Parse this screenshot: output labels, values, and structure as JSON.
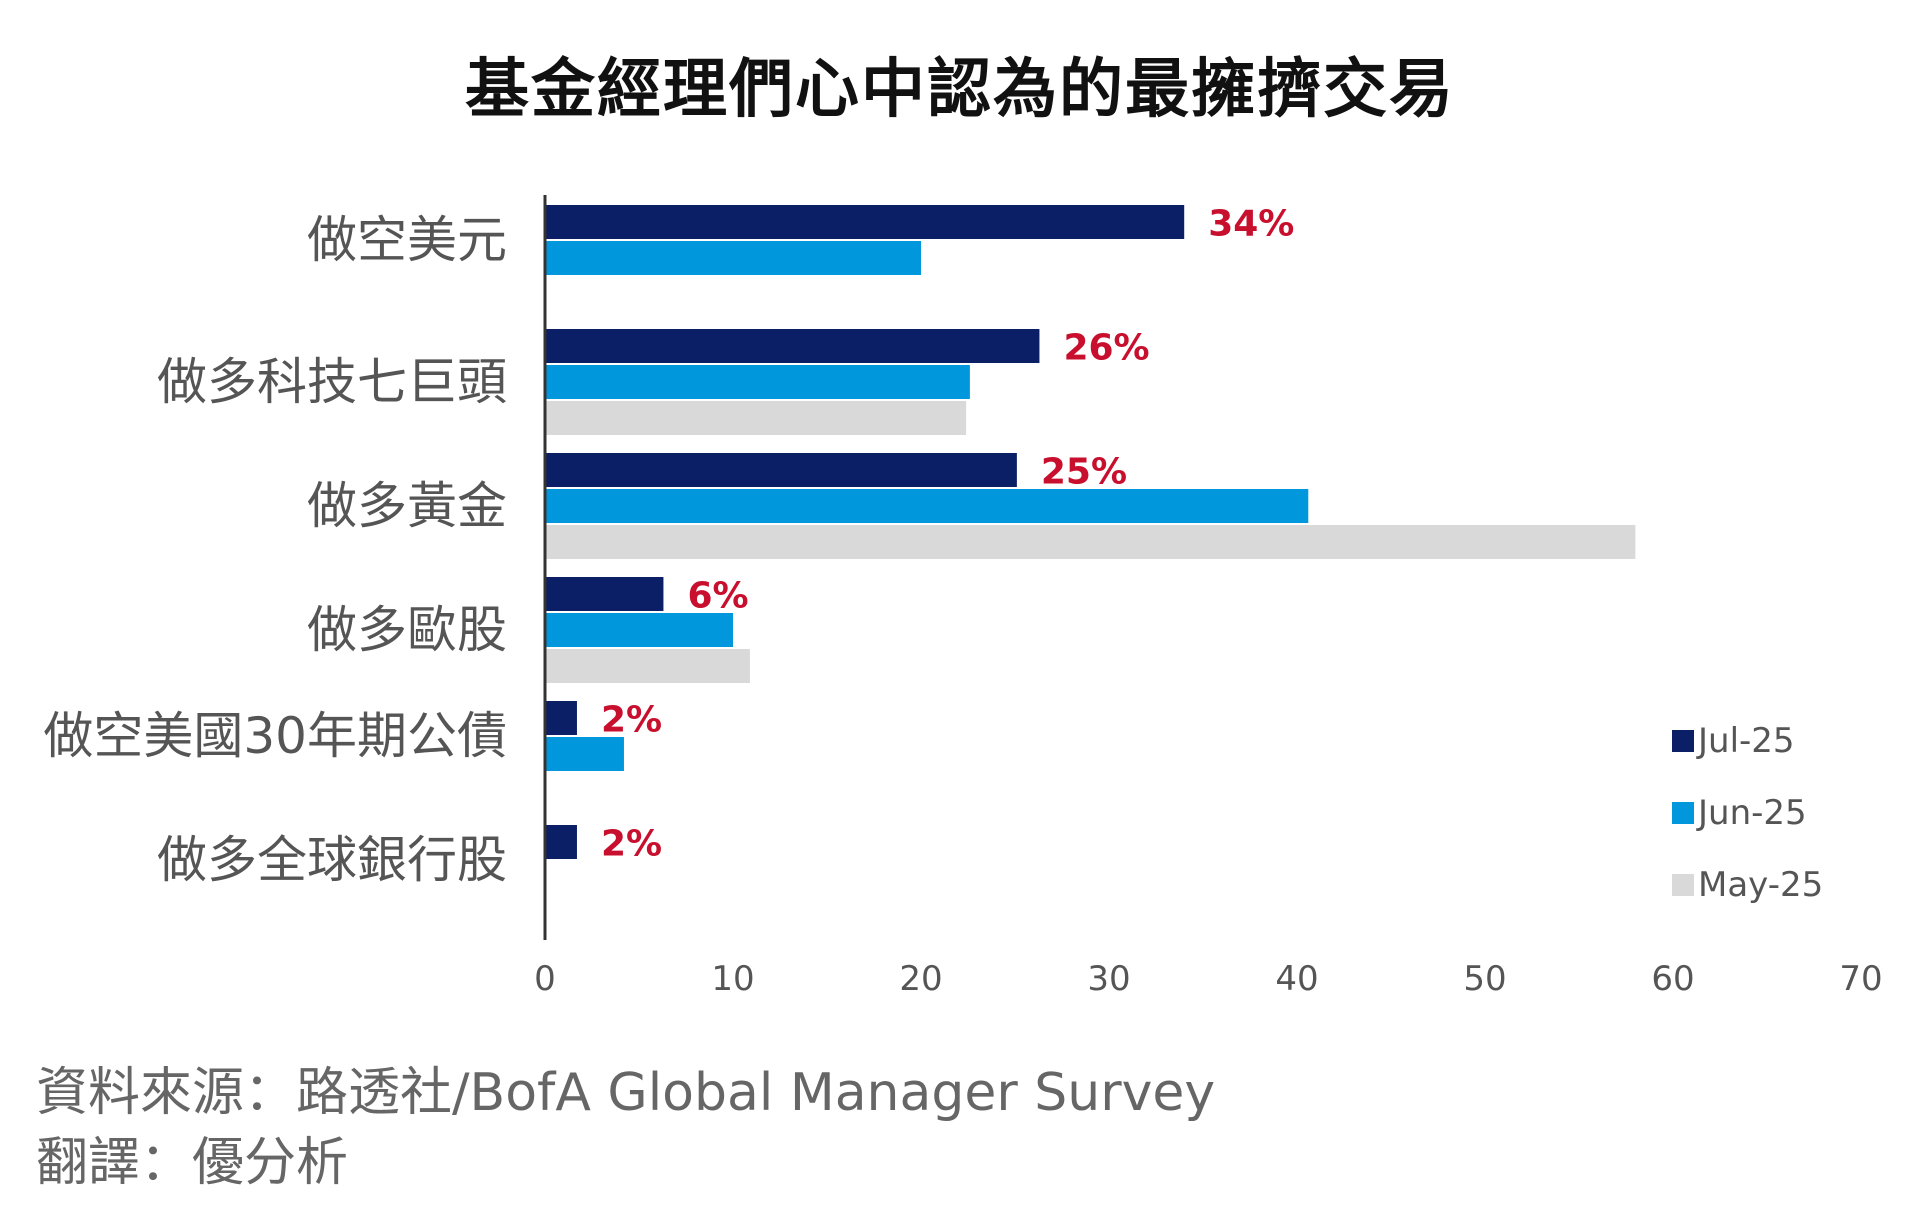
{
  "chart_data": {
    "type": "bar",
    "orientation": "horizontal",
    "title": "基金經理們心中認為的最擁擠交易",
    "categories": [
      "做空美元",
      "做多科技七巨頭",
      "做多黃金",
      "做多歐股",
      "做空美國30年期公債",
      "做多全球銀行股"
    ],
    "series": [
      {
        "name": "Jul-25",
        "color": "#0b1f66",
        "values": [
          34,
          26.3,
          25.1,
          6.3,
          1.7,
          1.7
        ]
      },
      {
        "name": "Jun-25",
        "color": "#0097dc",
        "values": [
          20,
          22.6,
          40.6,
          10,
          4.2,
          null
        ]
      },
      {
        "name": "May-25",
        "color": "#d9d9d9",
        "values": [
          null,
          22.4,
          58,
          10.9,
          null,
          null
        ]
      }
    ],
    "data_labels": [
      "34%",
      "26%",
      "25%",
      "6%",
      "2%",
      "2%"
    ],
    "xlim": [
      0,
      70
    ],
    "xticks": [
      0,
      10,
      20,
      30,
      40,
      50,
      60,
      70
    ],
    "xlabel": "",
    "ylabel": "",
    "grid": false,
    "legend_position": "bottom-right"
  },
  "footer": {
    "source": "資料來源：路透社/BofA Global Manager Survey",
    "translation": "翻譯：優分析"
  }
}
